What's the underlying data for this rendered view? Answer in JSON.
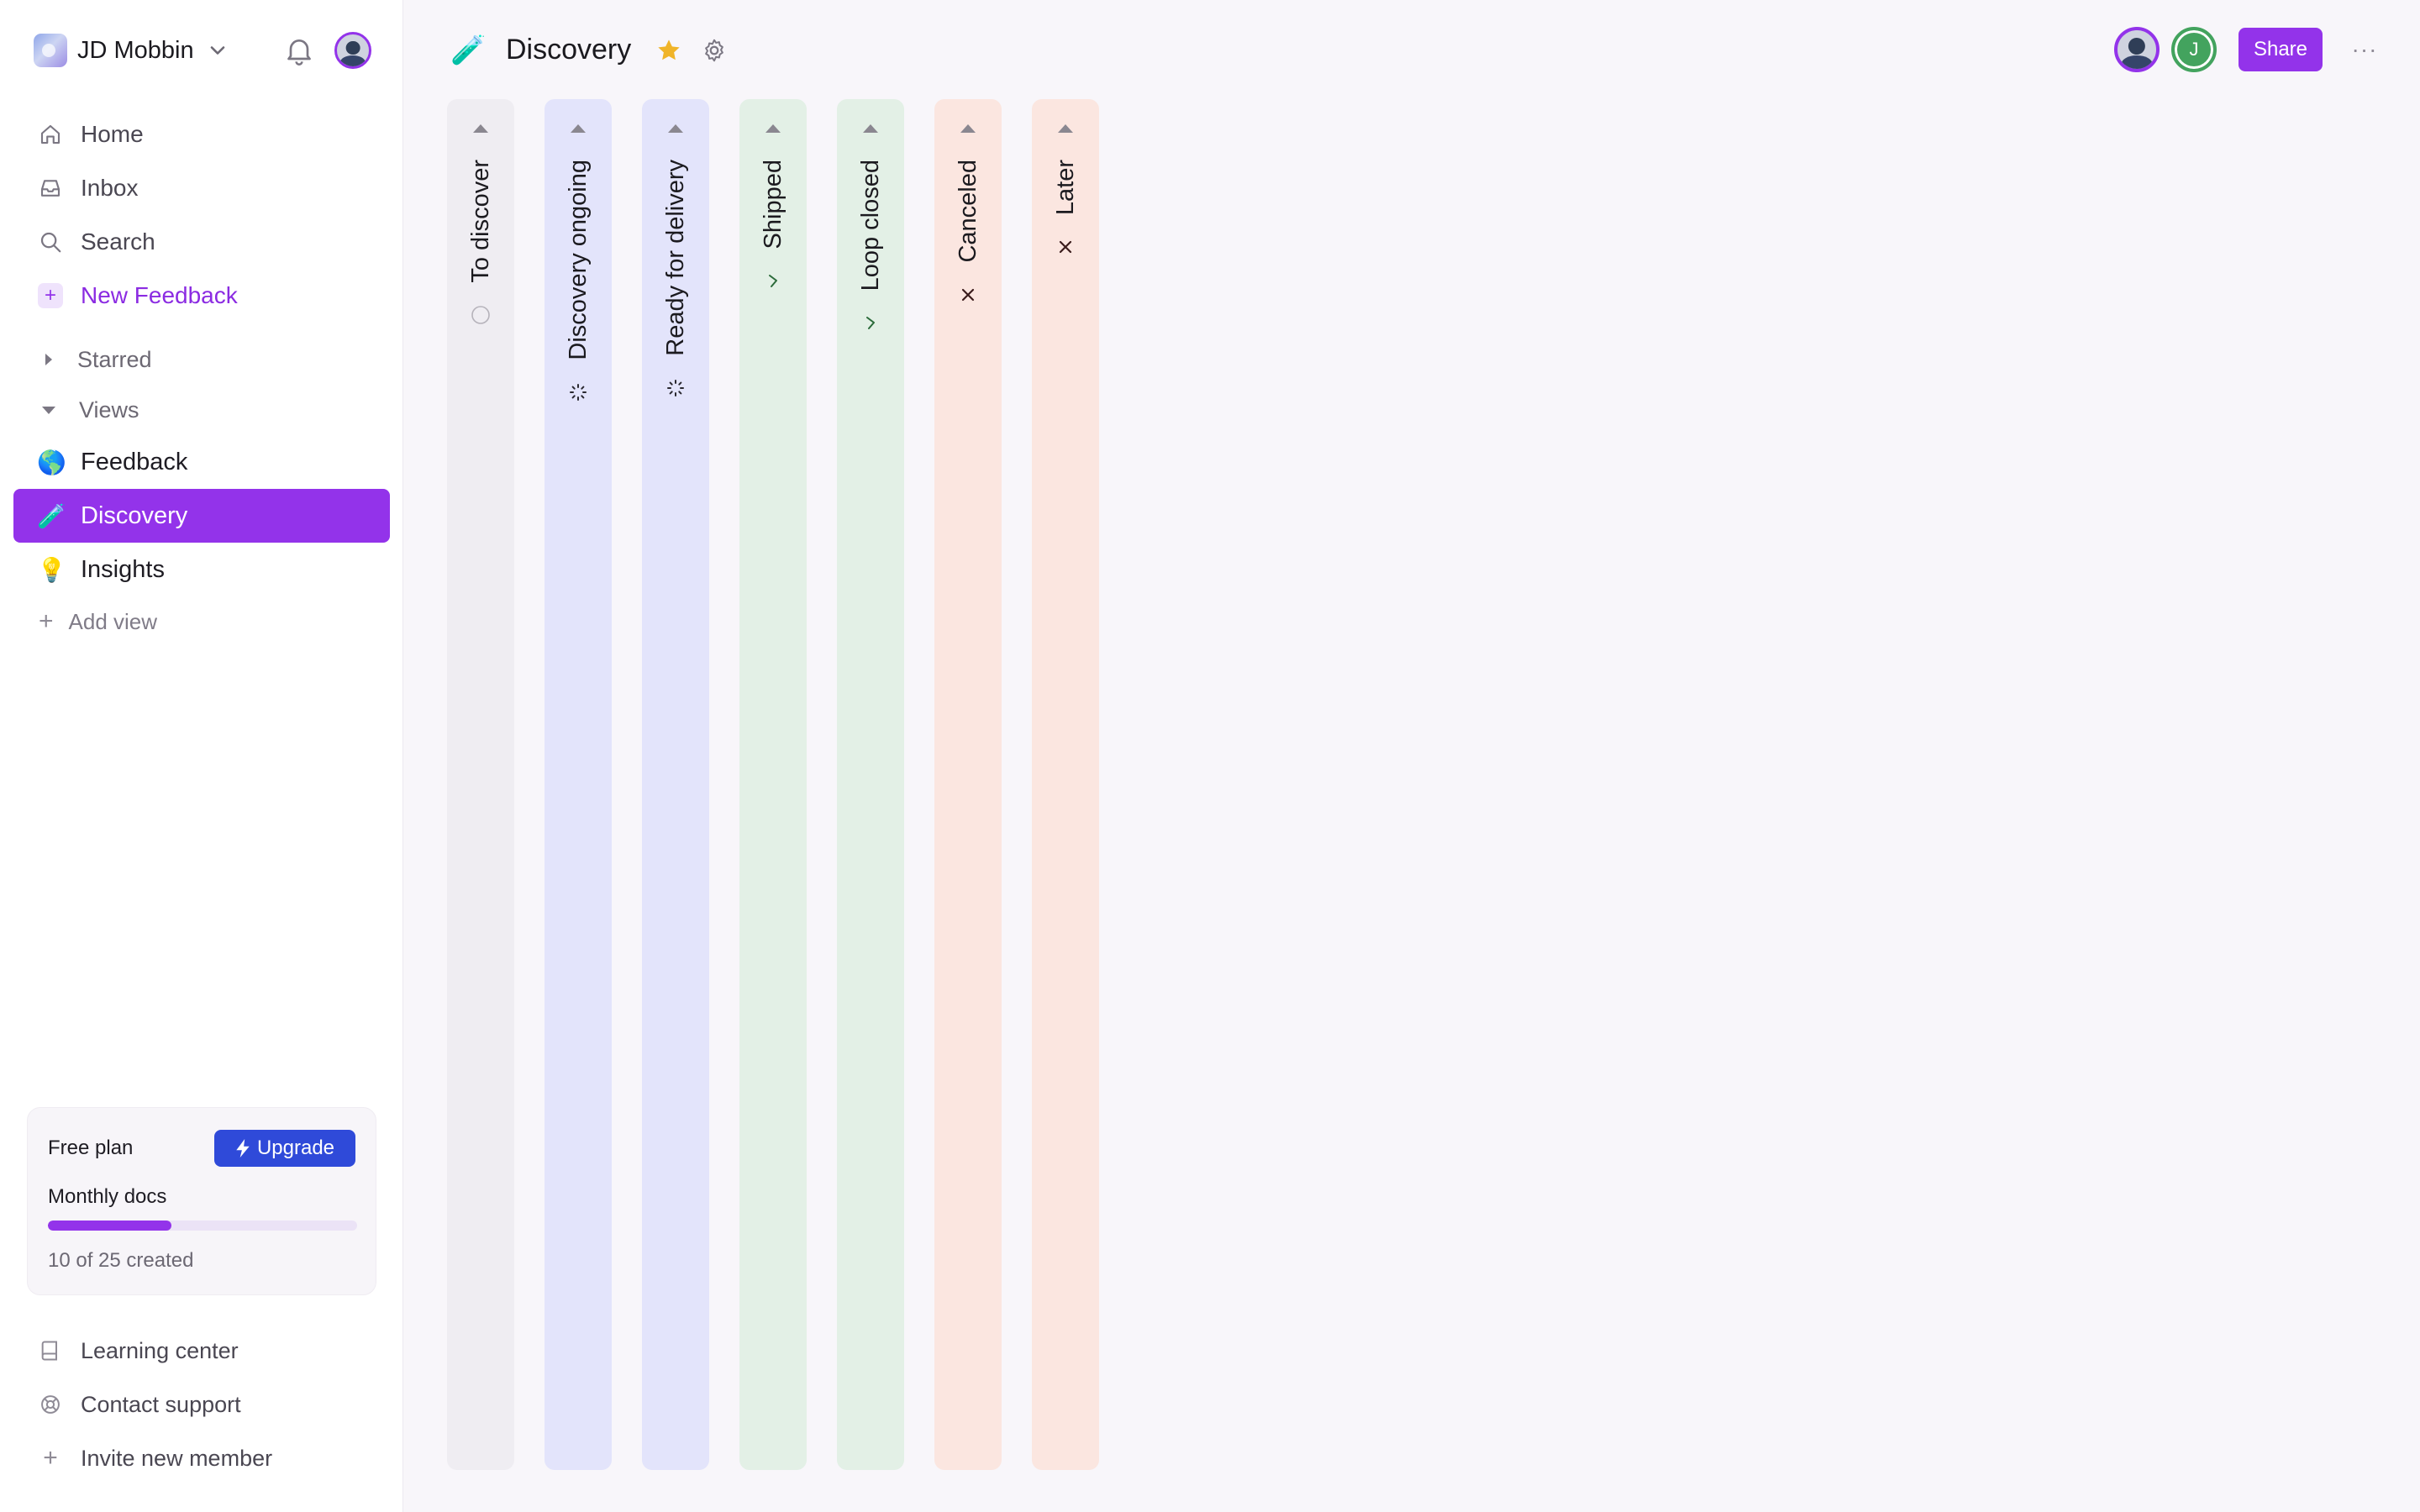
{
  "workspace": {
    "name": "JD Mobbin"
  },
  "nav": {
    "home": "Home",
    "inbox": "Inbox",
    "search": "Search",
    "new_feedback": "New Feedback"
  },
  "sections": {
    "starred": "Starred",
    "views": "Views"
  },
  "views": [
    {
      "emoji": "🌎",
      "label": "Feedback"
    },
    {
      "emoji": "🧪",
      "label": "Discovery",
      "active": true
    },
    {
      "emoji": "💡",
      "label": "Insights"
    }
  ],
  "add_view": "Add view",
  "plan": {
    "name": "Free plan",
    "upgrade_label": "Upgrade",
    "docs_label": "Monthly docs",
    "used": 10,
    "limit": 25,
    "progress": 0.4,
    "count_text": "10 of 25 created"
  },
  "footer_links": {
    "learning": "Learning center",
    "support": "Contact support",
    "invite": "Invite new member"
  },
  "page": {
    "emoji": "🧪",
    "title": "Discovery",
    "member2_initial": "J",
    "share_label": "Share",
    "more_label": "···"
  },
  "columns": [
    {
      "label": "To discover",
      "icon": "empty-circle-icon",
      "color": "#efedf2"
    },
    {
      "label": "Discovery ongoing",
      "icon": "progress-dots-icon",
      "color": "#e3e4fb"
    },
    {
      "label": "Ready for delivery",
      "icon": "progress-dots-icon",
      "color": "#e3e4fb"
    },
    {
      "label": "Shipped",
      "icon": "check-icon",
      "color": "#e3f0e6"
    },
    {
      "label": "Loop closed",
      "icon": "check-icon",
      "color": "#e3f0e6"
    },
    {
      "label": "Canceled",
      "icon": "cross-icon",
      "color": "#fbe6e0"
    },
    {
      "label": "Later",
      "icon": "cross-icon",
      "color": "#fbe6e0"
    }
  ],
  "colors": {
    "accent": "#9333ea",
    "upgrade": "#2f4ad9",
    "star": "#f0b429",
    "member_green": "#43a35e"
  }
}
